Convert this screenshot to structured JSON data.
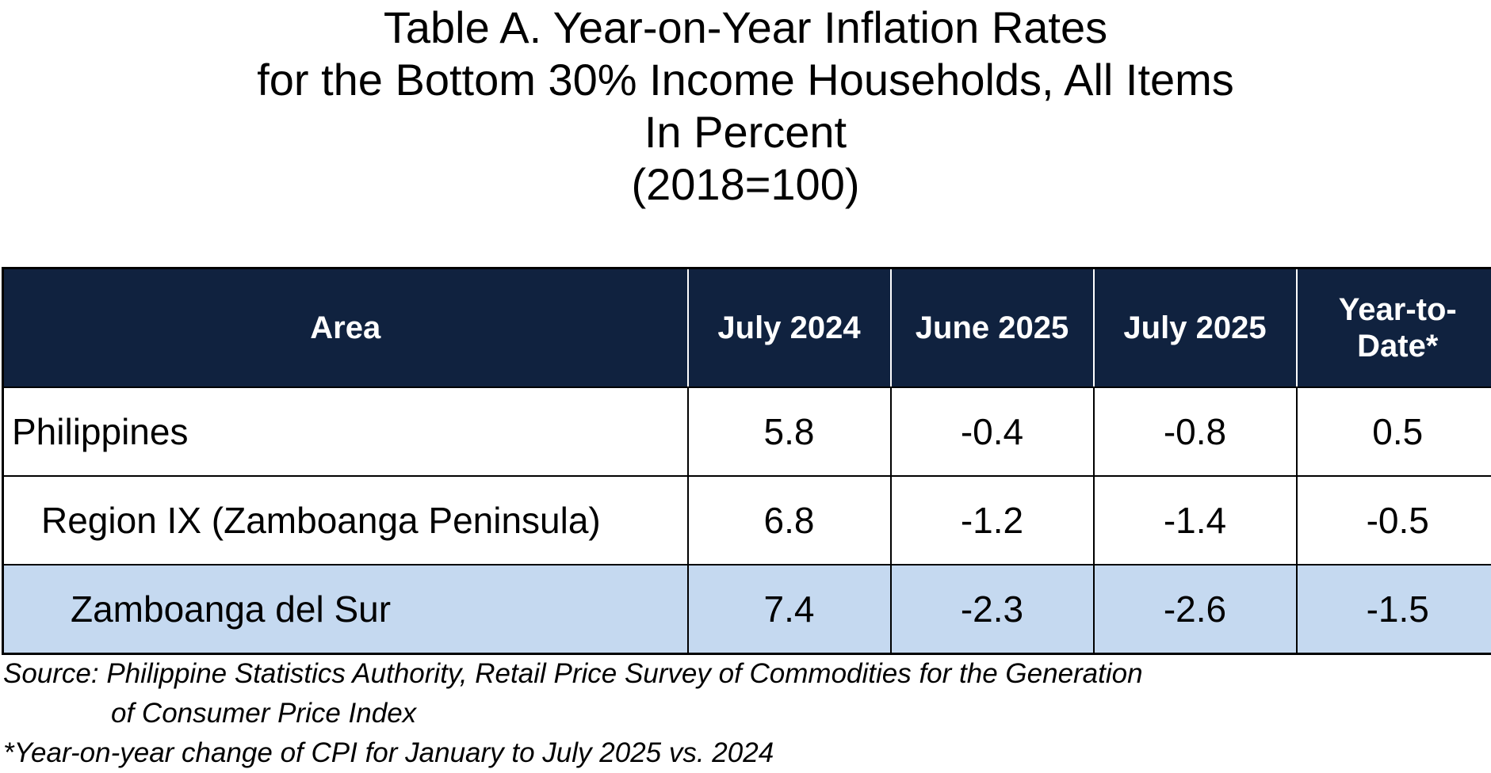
{
  "title": {
    "line1": "Table A.  Year-on-Year Inflation Rates",
    "line2": "for the Bottom 30% Income Households, All Items",
    "line3": "In Percent",
    "line4": "(2018=100)"
  },
  "table": {
    "headers": {
      "area": "Area",
      "col1": "July 2024",
      "col2": "June 2025",
      "col3": "July 2025",
      "col4_line1": "Year-to-",
      "col4_line2": "Date*"
    },
    "rows": [
      {
        "area": "Philippines",
        "v1": "5.8",
        "v2": "-0.4",
        "v3": "-0.8",
        "v4": "0.5"
      },
      {
        "area": "Region IX (Zamboanga Peninsula)",
        "v1": "6.8",
        "v2": "-1.2",
        "v3": "-1.4",
        "v4": "-0.5"
      },
      {
        "area": "Zamboanga del Sur",
        "v1": "7.4",
        "v2": "-2.3",
        "v3": "-2.6",
        "v4": "-1.5"
      }
    ]
  },
  "notes": {
    "source_line1": "Source: Philippine Statistics Authority, Retail Price Survey of Commodities for the Generation",
    "source_line2": "of Consumer Price Index",
    "footnote": "*Year-on-year change of CPI for January to July 2025 vs. 2024"
  },
  "colors": {
    "header_bg": "#10223f",
    "highlight_row_bg": "#c5d9f0"
  }
}
